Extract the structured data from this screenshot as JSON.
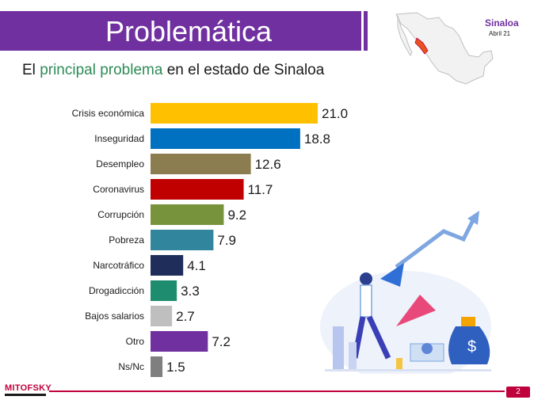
{
  "header": {
    "title": "Problemática",
    "subtitle_pre": "El ",
    "subtitle_highlight": "principal problema",
    "subtitle_post": " en el estado de Sinaloa",
    "region": "Sinaloa",
    "date": "Abril 21"
  },
  "footer": {
    "logo": "MITOFSKY",
    "page": "2"
  },
  "colors": {
    "title_bar": "#7030a0",
    "highlight": "#2e8b57",
    "footer_accent": "#c0003c"
  },
  "chart_data": {
    "type": "bar",
    "orientation": "horizontal",
    "categories": [
      "Crisis económica",
      "Inseguridad",
      "Desempleo",
      "Coronavirus",
      "Corrupción",
      "Pobreza",
      "Narcotráfico",
      "Drogadicción",
      "Bajos salarios",
      "Otro",
      "Ns/Nc"
    ],
    "values": [
      21.0,
      18.8,
      12.6,
      11.7,
      9.2,
      7.9,
      4.1,
      3.3,
      2.7,
      7.2,
      1.5
    ],
    "value_labels": [
      "21.0",
      "18.8",
      "12.6",
      "11.7",
      "9.2",
      "7.9",
      "4.1",
      "3.3",
      "2.7",
      "7.2",
      "1.5"
    ],
    "bar_colors": [
      "#ffc000",
      "#0070c0",
      "#8b7d4f",
      "#c00000",
      "#77933c",
      "#31859c",
      "#1f2d5a",
      "#1e8c6e",
      "#bfbfbf",
      "#7030a0",
      "#7f7f7f"
    ],
    "xlim": [
      0,
      21.0
    ],
    "grid": false
  }
}
